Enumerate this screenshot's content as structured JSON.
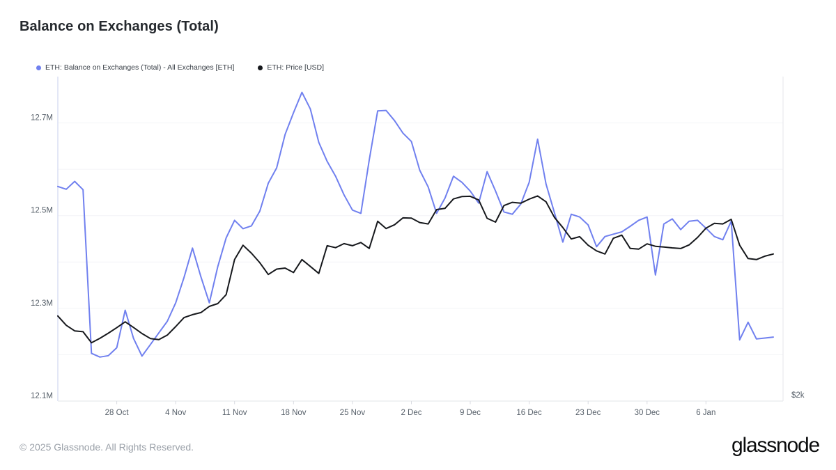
{
  "header": {
    "title": "Balance on Exchanges (Total)"
  },
  "legend": [
    {
      "label": "ETH: Balance on Exchanges (Total) - All Exchanges [ETH]",
      "color": "#7080ef"
    },
    {
      "label": "ETH: Price [USD]",
      "color": "#16181c"
    }
  ],
  "footer": {
    "copyright": "© 2025 Glassnode. All Rights Reserved.",
    "logo_text": "glassnode"
  },
  "chart_data": {
    "type": "line",
    "title": "Balance on Exchanges (Total)",
    "grid": "horizontal",
    "legend_position": "top-left",
    "x": [
      "2024-10-21",
      "2024-10-22",
      "2024-10-23",
      "2024-10-24",
      "2024-10-25",
      "2024-10-26",
      "2024-10-27",
      "2024-10-28",
      "2024-10-29",
      "2024-10-30",
      "2024-10-31",
      "2024-11-01",
      "2024-11-02",
      "2024-11-03",
      "2024-11-04",
      "2024-11-05",
      "2024-11-06",
      "2024-11-07",
      "2024-11-08",
      "2024-11-09",
      "2024-11-10",
      "2024-11-11",
      "2024-11-12",
      "2024-11-13",
      "2024-11-14",
      "2024-11-15",
      "2024-11-16",
      "2024-11-17",
      "2024-11-18",
      "2024-11-19",
      "2024-11-20",
      "2024-11-21",
      "2024-11-22",
      "2024-11-23",
      "2024-11-24",
      "2024-11-25",
      "2024-11-26",
      "2024-11-27",
      "2024-11-28",
      "2024-11-29",
      "2024-11-30",
      "2024-12-01",
      "2024-12-02",
      "2024-12-03",
      "2024-12-04",
      "2024-12-05",
      "2024-12-06",
      "2024-12-07",
      "2024-12-08",
      "2024-12-09",
      "2024-12-10",
      "2024-12-11",
      "2024-12-12",
      "2024-12-13",
      "2024-12-14",
      "2024-12-15",
      "2024-12-16",
      "2024-12-17",
      "2024-12-18",
      "2024-12-19",
      "2024-12-20",
      "2024-12-21",
      "2024-12-22",
      "2024-12-23",
      "2024-12-24",
      "2024-12-25",
      "2024-12-26",
      "2024-12-27",
      "2024-12-28",
      "2024-12-29",
      "2024-12-30",
      "2024-12-31",
      "2025-01-01",
      "2025-01-02",
      "2025-01-03",
      "2025-01-04",
      "2025-01-05",
      "2025-01-06",
      "2025-01-07",
      "2025-01-08",
      "2025-01-09",
      "2025-01-10",
      "2025-01-11",
      "2025-01-12",
      "2025-01-13",
      "2025-01-14"
    ],
    "series": [
      {
        "name": "ETH: Balance on Exchanges (Total) - All Exchanges [ETH]",
        "axis": "left",
        "unit": "ETH, millions",
        "color": "#7080ef",
        "values": [
          12.563,
          12.557,
          12.574,
          12.556,
          12.203,
          12.195,
          12.198,
          12.215,
          12.296,
          12.235,
          12.197,
          12.222,
          12.247,
          12.272,
          12.312,
          12.367,
          12.43,
          12.368,
          12.312,
          12.39,
          12.452,
          12.49,
          12.472,
          12.478,
          12.51,
          12.57,
          12.603,
          12.675,
          12.722,
          12.766,
          12.73,
          12.658,
          12.617,
          12.585,
          12.545,
          12.512,
          12.505,
          12.62,
          12.726,
          12.727,
          12.705,
          12.678,
          12.66,
          12.598,
          12.562,
          12.505,
          12.538,
          12.585,
          12.572,
          12.553,
          12.527,
          12.595,
          12.553,
          12.508,
          12.503,
          12.525,
          12.572,
          12.665,
          12.568,
          12.506,
          12.443,
          12.503,
          12.497,
          12.48,
          12.433,
          12.455,
          12.46,
          12.465,
          12.477,
          12.49,
          12.497,
          12.372,
          12.482,
          12.493,
          12.47,
          12.488,
          12.49,
          12.473,
          12.455,
          12.448,
          12.488,
          12.232,
          12.27,
          12.234,
          12.236,
          12.238
        ]
      },
      {
        "name": "ETH: Price [USD]",
        "axis": "right",
        "unit": "USD",
        "color": "#16181c",
        "values": [
          2800,
          2712,
          2660,
          2652,
          2548,
          2590,
          2638,
          2690,
          2745,
          2692,
          2635,
          2588,
          2577,
          2620,
          2700,
          2785,
          2812,
          2832,
          2890,
          2916,
          3000,
          3330,
          3465,
          3390,
          3300,
          3190,
          3240,
          3250,
          3208,
          3330,
          3265,
          3200,
          3460,
          3442,
          3480,
          3460,
          3490,
          3435,
          3690,
          3622,
          3657,
          3722,
          3720,
          3678,
          3665,
          3800,
          3812,
          3900,
          3922,
          3925,
          3890,
          3718,
          3682,
          3838,
          3868,
          3860,
          3898,
          3928,
          3873,
          3726,
          3631,
          3524,
          3545,
          3465,
          3412,
          3382,
          3530,
          3560,
          3435,
          3428,
          3478,
          3455,
          3448,
          3440,
          3434,
          3468,
          3538,
          3625,
          3670,
          3665,
          3708,
          3465,
          3340,
          3330,
          3362,
          3382
        ]
      }
    ],
    "left_axis": {
      "range": [
        12.1,
        12.8
      ],
      "gridline_step": 0.1,
      "ticks": [
        {
          "value": 12.1,
          "label": "12.1M"
        },
        {
          "value": 12.3,
          "label": "12.3M"
        },
        {
          "value": 12.5,
          "label": "12.5M"
        },
        {
          "value": 12.7,
          "label": "12.7M"
        }
      ]
    },
    "right_axis": {
      "range": [
        2000,
        5050
      ],
      "ticks": [
        {
          "value": 2000,
          "label": "$2k"
        }
      ]
    },
    "x_ticks": [
      {
        "index": 7,
        "label": "28 Oct"
      },
      {
        "index": 14,
        "label": "4 Nov"
      },
      {
        "index": 21,
        "label": "11 Nov"
      },
      {
        "index": 28,
        "label": "18 Nov"
      },
      {
        "index": 35,
        "label": "25 Nov"
      },
      {
        "index": 42,
        "label": "2 Dec"
      },
      {
        "index": 49,
        "label": "9 Dec"
      },
      {
        "index": 56,
        "label": "16 Dec"
      },
      {
        "index": 63,
        "label": "23 Dec"
      },
      {
        "index": 70,
        "label": "30 Dec"
      },
      {
        "index": 77,
        "label": "6 Jan"
      }
    ],
    "colors": {
      "gridline": "#f3f4f7",
      "border_left": "#d7ddf3",
      "border": "#e8e9ee",
      "tick_mark": "#d9dbe1",
      "axis_text": "#57606a"
    }
  }
}
